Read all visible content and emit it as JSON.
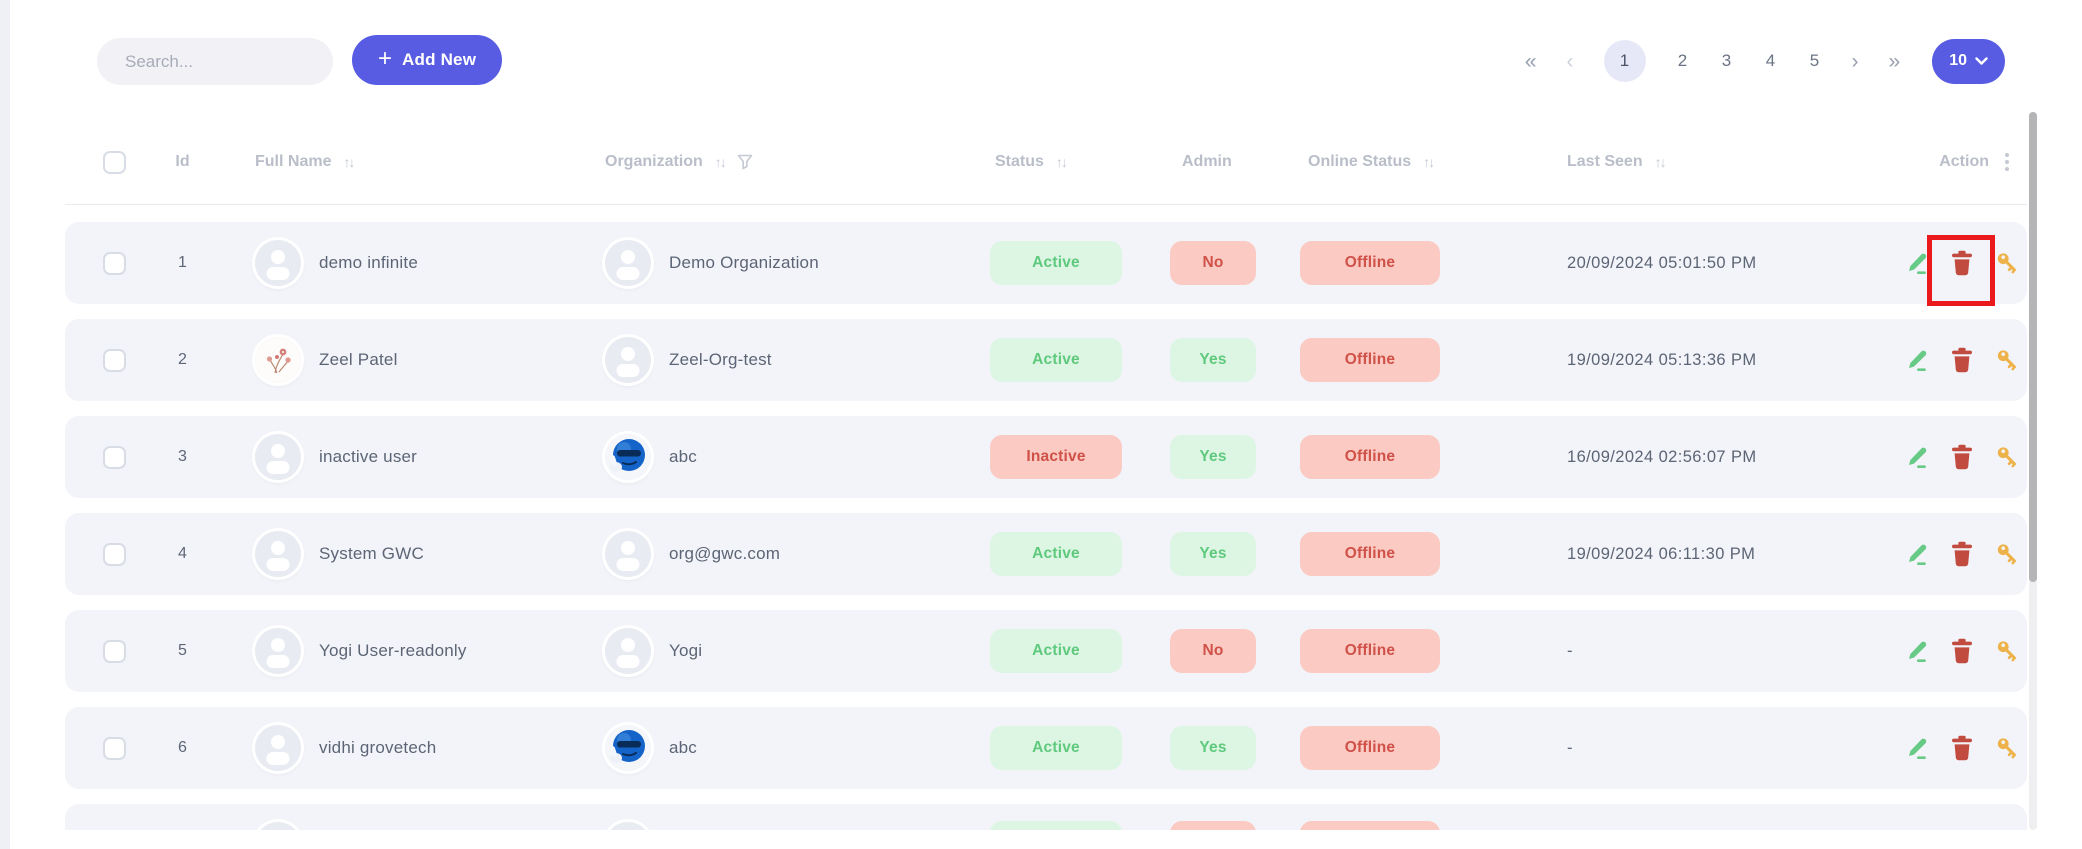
{
  "colors": {
    "accent": "#585ce2",
    "success-bg": "#dcf6e3",
    "success-text": "#5fc97d",
    "danger-bg": "#fbcac3",
    "danger-text": "#cf5148",
    "annotation": "#e9191c",
    "edit-icon-color": "#67ca86",
    "delete-icon-color": "#c24b40",
    "key-icon-color": "#eeb24b"
  },
  "toolbar": {
    "search_placeholder": "Search...",
    "add_new_plus": "+",
    "add_new_label": "Add New"
  },
  "pagination": {
    "first": "«",
    "prev": "‹",
    "pages": [
      "1",
      "2",
      "3",
      "4",
      "5"
    ],
    "active_page": "1",
    "next": "›",
    "last": "»",
    "page_size": "10"
  },
  "table": {
    "headers": {
      "id": "Id",
      "full_name": "Full Name",
      "organization": "Organization",
      "status": "Status",
      "admin": "Admin",
      "online_status": "Online Status",
      "last_seen": "Last Seen",
      "action": "Action"
    },
    "sort_glyph": "↑↓",
    "action_icons": [
      "edit-pencil-icon",
      "delete-trash-icon",
      "reset-key-icon"
    ],
    "rows": [
      {
        "id": "1",
        "full_name": "demo infinite",
        "avatar": "person-avatar",
        "organization": "Demo Organization",
        "org_avatar": "person-avatar",
        "status": {
          "label": "Active",
          "type": "success"
        },
        "admin": {
          "label": "No",
          "type": "danger"
        },
        "online": {
          "label": "Offline",
          "type": "danger"
        },
        "last_seen": "20/09/2024 05:01:50 PM",
        "highlight_delete": true
      },
      {
        "id": "2",
        "full_name": "Zeel Patel",
        "avatar": "flowers-avatar",
        "organization": "Zeel-Org-test",
        "org_avatar": "person-avatar",
        "status": {
          "label": "Active",
          "type": "success"
        },
        "admin": {
          "label": "Yes",
          "type": "success"
        },
        "online": {
          "label": "Offline",
          "type": "danger"
        },
        "last_seen": "19/09/2024 05:13:36 PM",
        "highlight_delete": false
      },
      {
        "id": "3",
        "full_name": "inactive user",
        "avatar": "person-avatar",
        "organization": "abc",
        "org_avatar": "blue-emoji-avatar",
        "status": {
          "label": "Inactive",
          "type": "danger"
        },
        "admin": {
          "label": "Yes",
          "type": "success"
        },
        "online": {
          "label": "Offline",
          "type": "danger"
        },
        "last_seen": "16/09/2024 02:56:07 PM",
        "highlight_delete": false
      },
      {
        "id": "4",
        "full_name": "System GWC",
        "avatar": "person-avatar",
        "organization": "org@gwc.com",
        "org_avatar": "person-avatar",
        "status": {
          "label": "Active",
          "type": "success"
        },
        "admin": {
          "label": "Yes",
          "type": "success"
        },
        "online": {
          "label": "Offline",
          "type": "danger"
        },
        "last_seen": "19/09/2024 06:11:30 PM",
        "highlight_delete": false
      },
      {
        "id": "5",
        "full_name": "Yogi User-readonly",
        "avatar": "person-avatar",
        "organization": "Yogi",
        "org_avatar": "person-avatar",
        "status": {
          "label": "Active",
          "type": "success"
        },
        "admin": {
          "label": "No",
          "type": "danger"
        },
        "online": {
          "label": "Offline",
          "type": "danger"
        },
        "last_seen": "-",
        "highlight_delete": false
      },
      {
        "id": "6",
        "full_name": "vidhi grovetech",
        "avatar": "person-avatar",
        "organization": "abc",
        "org_avatar": "blue-emoji-avatar",
        "status": {
          "label": "Active",
          "type": "success"
        },
        "admin": {
          "label": "Yes",
          "type": "success"
        },
        "online": {
          "label": "Offline",
          "type": "danger"
        },
        "last_seen": "-",
        "highlight_delete": false
      },
      {
        "id": "",
        "full_name": "",
        "avatar": "person-avatar",
        "organization": "",
        "org_avatar": "person-avatar",
        "status": {
          "label": "",
          "type": "success"
        },
        "admin": {
          "label": "",
          "type": "danger"
        },
        "online": {
          "label": "",
          "type": "danger"
        },
        "last_seen": "",
        "highlight_delete": false,
        "partial": true
      }
    ]
  }
}
